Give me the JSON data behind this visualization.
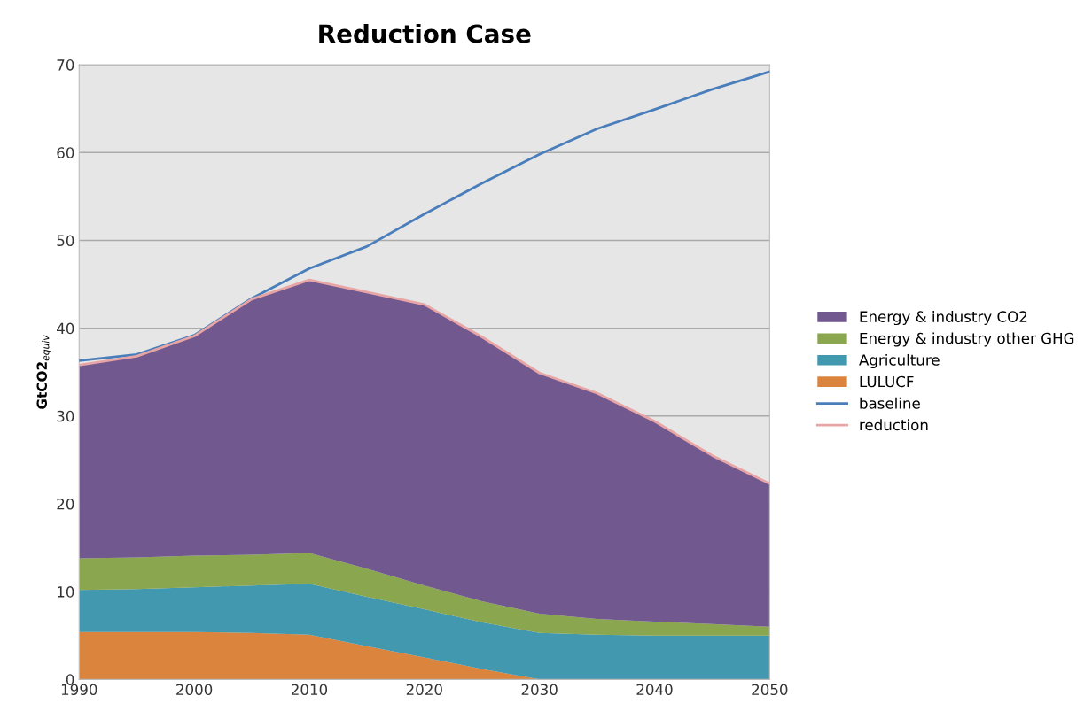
{
  "chart_data": {
    "type": "area",
    "stacked": true,
    "title": "Reduction Case",
    "ylabel": "GtCO2$_{equiv}$",
    "x": [
      1990,
      1995,
      2000,
      2005,
      2010,
      2015,
      2020,
      2025,
      2030,
      2035,
      2040,
      2045,
      2050
    ],
    "xlim": [
      1990,
      2050
    ],
    "xticks": [
      1990,
      2000,
      2010,
      2020,
      2030,
      2040,
      2050
    ],
    "ylim": [
      0,
      70
    ],
    "yticks": [
      0,
      10,
      20,
      30,
      40,
      50,
      60,
      70
    ],
    "grid": "y",
    "legend": "right",
    "series": [
      {
        "name": "LULUCF",
        "color": "#db843d",
        "values": [
          5.4,
          5.4,
          5.4,
          5.3,
          5.1,
          3.8,
          2.5,
          1.2,
          0,
          0,
          0,
          0,
          0
        ]
      },
      {
        "name": "Agriculture",
        "color": "#4198af",
        "values": [
          4.8,
          4.9,
          5.1,
          5.4,
          5.8,
          5.6,
          5.5,
          5.3,
          5.3,
          5.1,
          5.0,
          5.0,
          5.0
        ]
      },
      {
        "name": "Energy & industry other GHG",
        "color": "#8aa64e",
        "values": [
          3.6,
          3.6,
          3.6,
          3.5,
          3.5,
          3.2,
          2.7,
          2.4,
          2.2,
          1.8,
          1.6,
          1.3,
          1.0
        ]
      },
      {
        "name": "Energy & industry CO2",
        "color": "#71588f",
        "values": [
          22.0,
          22.9,
          25.0,
          29.1,
          31.1,
          31.5,
          32.0,
          30.1,
          27.4,
          25.7,
          22.8,
          19.2,
          16.3
        ]
      },
      {
        "name": "baseline",
        "type": "line",
        "color": "#4a7ebb",
        "values": [
          36.3,
          37.0,
          39.2,
          43.4,
          46.8,
          49.3,
          53.0,
          56.5,
          59.8,
          62.7,
          64.9,
          67.2,
          69.2
        ]
      },
      {
        "name": "reduction",
        "type": "line",
        "color": "#e8a5a5",
        "values": [
          35.8,
          36.8,
          39.1,
          43.3,
          45.5,
          44.1,
          42.7,
          39.0,
          34.9,
          32.6,
          29.4,
          25.5,
          22.3
        ]
      }
    ]
  }
}
